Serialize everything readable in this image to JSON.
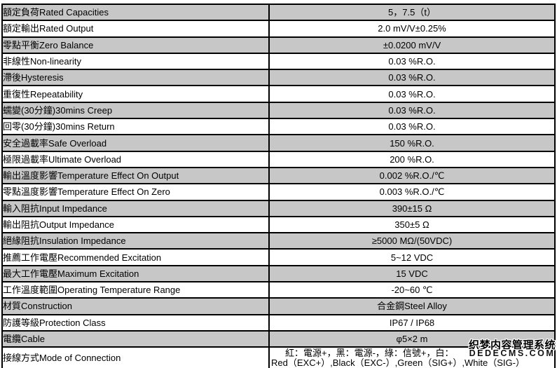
{
  "colors": {
    "shaded_row": "#c7c7c7",
    "plain_row": "#ffffff",
    "border": "#000000",
    "text": "#000000"
  },
  "table": {
    "columns": [
      "parameter",
      "value"
    ],
    "rows": [
      {
        "label": "額定負荷Rated Capacities",
        "value": "5，7.5（t）",
        "shaded": true
      },
      {
        "label": "額定輸出Rated Output",
        "value": "2.0 mV/V±0.25%",
        "shaded": false
      },
      {
        "label": "零點平衡Zero Balance",
        "value": "±0.0200 mV/V",
        "shaded": true
      },
      {
        "label": "非線性Non-linearity",
        "value": "0.03 %R.O.",
        "shaded": false
      },
      {
        "label": "滯後Hysteresis",
        "value": "0.03 %R.O.",
        "shaded": true
      },
      {
        "label": "重復性Repeatability",
        "value": "0.03 %R.O.",
        "shaded": false
      },
      {
        "label": "蠕變(30分鐘)30mins Creep",
        "value": "0.03 %R.O.",
        "shaded": true
      },
      {
        "label": "回零(30分鐘)30mins Return",
        "value": "0.03 %R.O.",
        "shaded": false
      },
      {
        "label": "安全過載率Safe Overload",
        "value": "150 %R.O.",
        "shaded": true
      },
      {
        "label": "極限過載率Ultimate Overload",
        "value": "200 %R.O.",
        "shaded": false
      },
      {
        "label": "輸出溫度影響Temperature Effect On Output",
        "value": "0.002 %R.O./℃",
        "shaded": true
      },
      {
        "label": "零點溫度影響Temperature Effect On Zero",
        "value": "0.003 %R.O./℃",
        "shaded": false
      },
      {
        "label": "輸入阻抗Input Impedance",
        "value": "390±15 Ω",
        "shaded": true
      },
      {
        "label": "輸出阻抗Output Impedance",
        "value": "350±5 Ω",
        "shaded": false
      },
      {
        "label": "絕緣阻抗Insulation Impedance",
        "value": "≥5000 MΩ/(50VDC)",
        "shaded": true
      },
      {
        "label": "推薦工作電壓Recommended Excitation",
        "value": "5~12 VDC",
        "shaded": false
      },
      {
        "label": "最大工作電壓Maximum Excitation",
        "value": "15 VDC",
        "shaded": true
      },
      {
        "label": "工作溫度範圍Operating Temperature Range",
        "value": "-20~60 ℃",
        "shaded": false
      },
      {
        "label": "材質Construction",
        "value": "合金鋼Steel Alloy",
        "shaded": true
      },
      {
        "label": "防護等級Protection Class",
        "value": "IP67 / IP68",
        "shaded": false
      },
      {
        "label": "電纜Cable",
        "value": "φ5×2 m",
        "shaded": true
      },
      {
        "label": "接線方式Mode of Connection",
        "value_lines": [
          "紅：電源+，黑：電源-，綠：信號+，白：",
          "Red（EXC+）,Black（EXC-）,Green（SIG+）,White（SIG-）"
        ],
        "shaded": false
      }
    ]
  },
  "watermark": {
    "line1": "织梦内容管理系统",
    "line2": "DEDECMS.COM"
  }
}
